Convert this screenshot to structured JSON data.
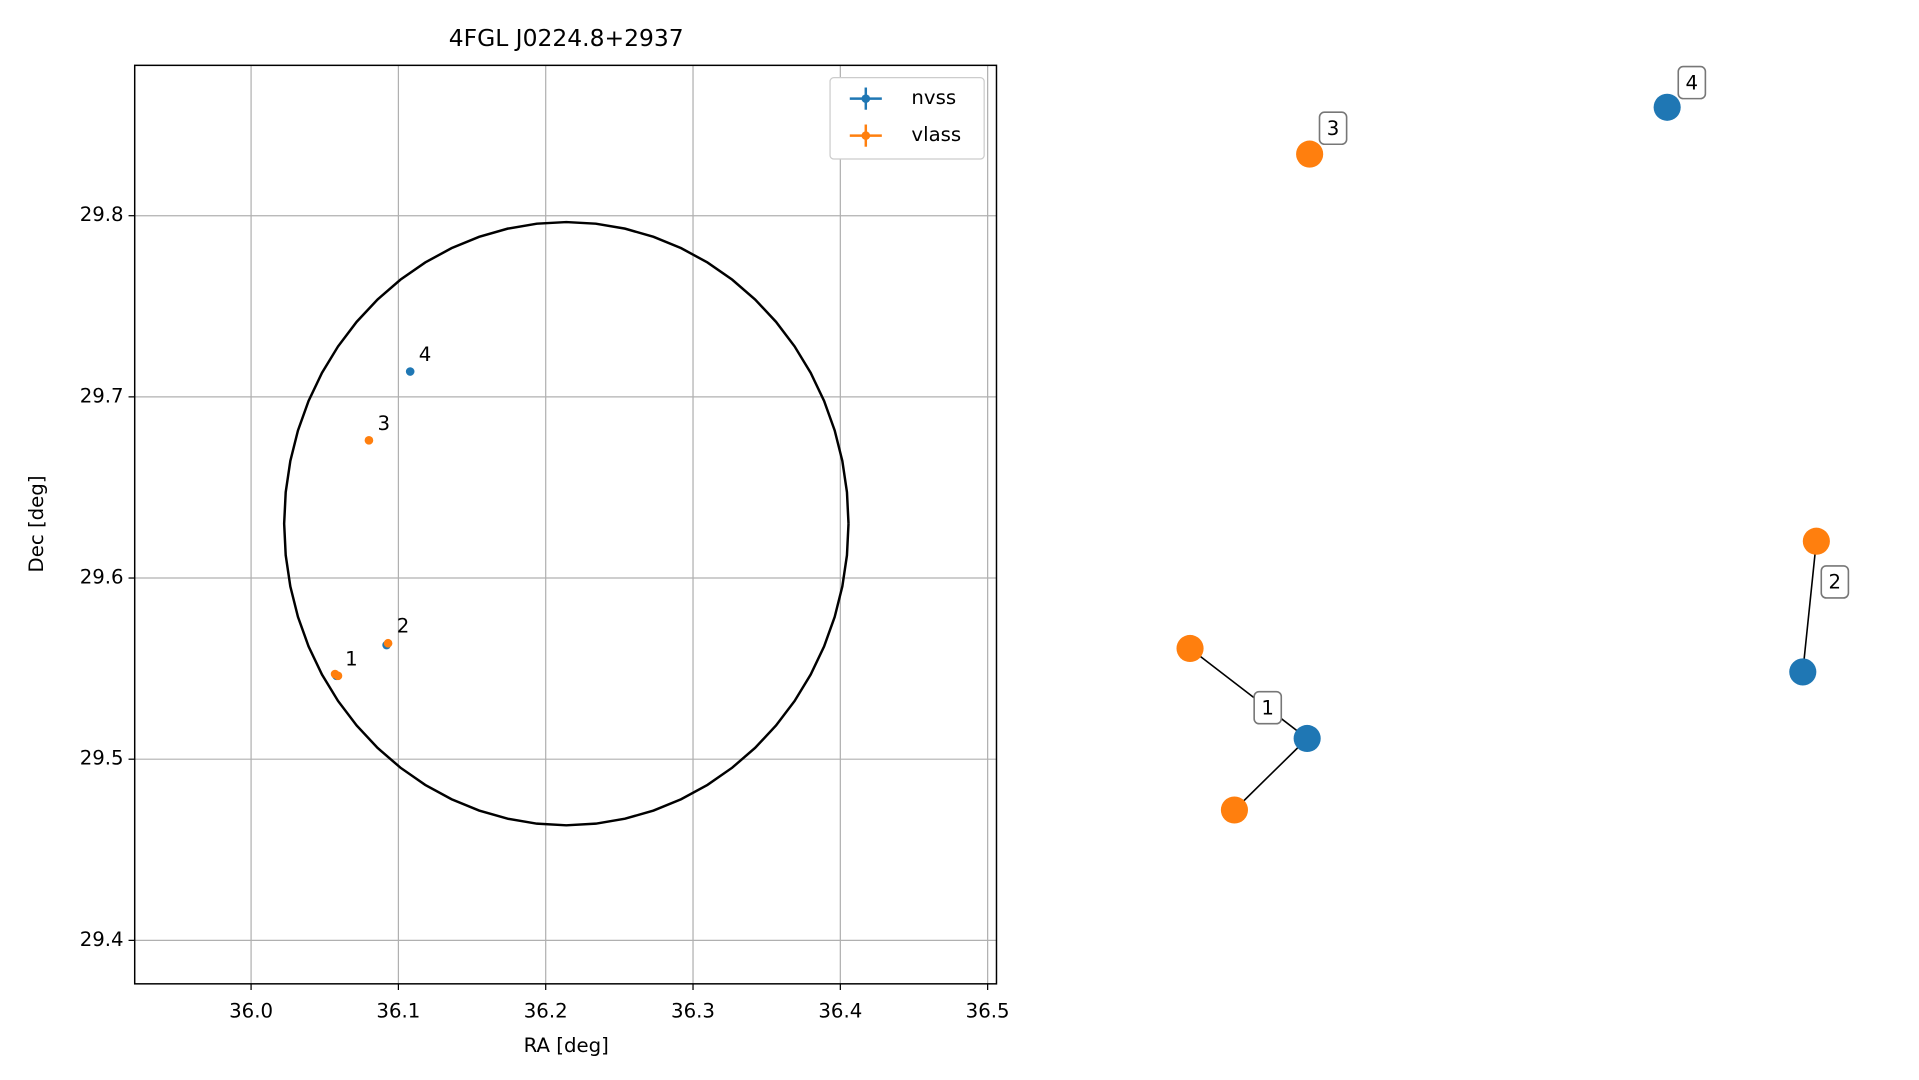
{
  "chart_data": [
    {
      "type": "scatter",
      "title": "4FGL J0224.8+2937",
      "xlabel": "RA [deg]",
      "ylabel": "Dec [deg]",
      "xlim": [
        35.921,
        36.506
      ],
      "ylim": [
        29.376,
        29.883
      ],
      "xticks": [
        {
          "value": 36.0,
          "label": "36.0"
        },
        36.1,
        36.2,
        36.3,
        36.4,
        36.5
      ],
      "yticks": [
        29.4,
        29.5,
        29.6,
        29.7,
        29.8
      ],
      "grid": true,
      "legend": "upper right",
      "series": [
        {
          "name": "nvss",
          "color": "#1f77b4",
          "x": [
            36.058,
            36.092,
            36.108
          ],
          "y": [
            29.546,
            29.563,
            29.714
          ]
        },
        {
          "name": "vlass",
          "color": "#ff7f0e",
          "x": [
            36.057,
            36.059,
            36.093,
            36.08
          ],
          "y": [
            29.547,
            29.546,
            29.564,
            29.676
          ]
        }
      ],
      "circle": {
        "ra": 36.214,
        "dec": 29.63,
        "radius": 0.1665
      },
      "annotations": [
        {
          "text": "1",
          "x": 36.058,
          "y": 29.546
        },
        {
          "text": "2",
          "x": 36.093,
          "y": 29.564
        },
        {
          "text": "3",
          "x": 36.08,
          "y": 29.676
        },
        {
          "text": "4",
          "x": 36.108,
          "y": 29.714
        }
      ]
    },
    {
      "type": "graph",
      "labels": [
        "1",
        "2",
        "3",
        "4"
      ],
      "nodes": [
        {
          "color": "#ff7f0e"
        },
        {
          "color": "#1f77b4"
        },
        {
          "color": "#ff7f0e"
        },
        {
          "color": "#ff7f0e"
        },
        {
          "color": "#1f77b4"
        },
        {
          "color": "#ff7f0e"
        },
        {
          "color": "#1f77b4"
        }
      ],
      "edges": [
        [
          0,
          1
        ],
        [
          1,
          2
        ],
        [
          3,
          4
        ]
      ]
    }
  ]
}
